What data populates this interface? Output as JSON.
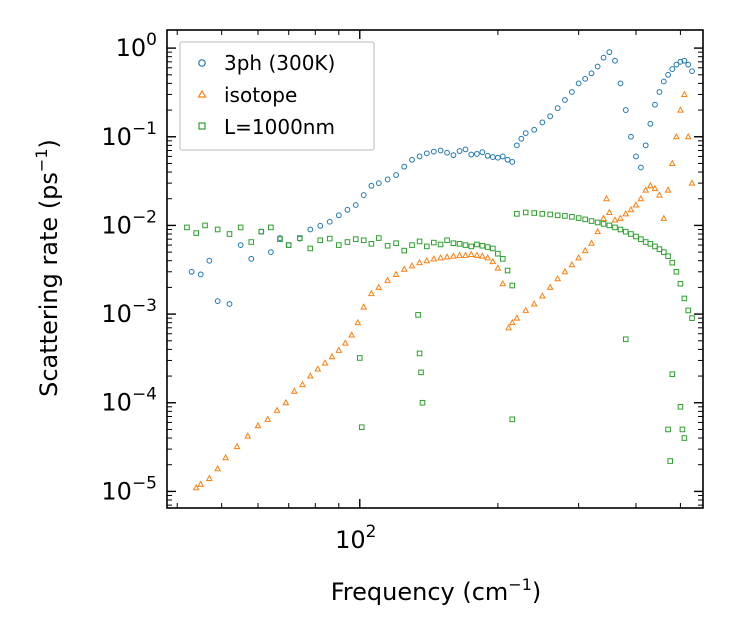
{
  "chart_data": {
    "type": "scatter",
    "title": "",
    "xlabel": "Frequency (cm",
    "xlabel_sup": "−1",
    "xlabel_close": ")",
    "ylabel": "Scattering rate (ps",
    "ylabel_sup": "−1",
    "ylabel_close": ")",
    "xscale": "log",
    "yscale": "log",
    "xlim": [
      38,
      560
    ],
    "ylim": [
      6.5e-06,
      1.6
    ],
    "grid": false,
    "legend_position": "top-left",
    "x_ticks": [
      {
        "base": "10",
        "exp": "2",
        "value": 100
      }
    ],
    "y_ticks": [
      {
        "base": "10",
        "exp": "0",
        "value": 1
      },
      {
        "base": "10",
        "exp": "−1",
        "value": 0.1
      },
      {
        "base": "10",
        "exp": "−2",
        "value": 0.01
      },
      {
        "base": "10",
        "exp": "−3",
        "value": 0.001
      },
      {
        "base": "10",
        "exp": "−4",
        "value": 0.0001
      },
      {
        "base": "10",
        "exp": "−5",
        "value": 1e-05
      }
    ],
    "series": [
      {
        "name": "3ph (300K)",
        "marker": "circle",
        "color": "#1f77b4",
        "x": [
          43,
          45,
          47,
          49,
          52,
          55,
          58,
          61,
          64,
          67,
          70,
          74,
          78,
          82,
          86,
          90,
          94,
          98,
          102,
          106,
          110,
          115,
          120,
          125,
          130,
          135,
          140,
          145,
          150,
          155,
          160,
          165,
          170,
          175,
          180,
          185,
          190,
          195,
          200,
          205,
          210,
          215,
          220,
          225,
          230,
          240,
          250,
          260,
          270,
          280,
          290,
          300,
          310,
          320,
          330,
          340,
          350,
          360,
          370,
          380,
          390,
          400,
          410,
          420,
          430,
          440,
          450,
          460,
          470,
          480,
          490,
          500,
          510,
          520,
          530
        ],
        "y": [
          0.003,
          0.0028,
          0.004,
          0.0014,
          0.0013,
          0.006,
          0.0042,
          0.0085,
          0.005,
          0.0072,
          0.006,
          0.0071,
          0.009,
          0.0099,
          0.011,
          0.013,
          0.015,
          0.017,
          0.022,
          0.028,
          0.03,
          0.033,
          0.037,
          0.046,
          0.055,
          0.06,
          0.065,
          0.068,
          0.07,
          0.066,
          0.062,
          0.069,
          0.072,
          0.063,
          0.064,
          0.067,
          0.061,
          0.059,
          0.058,
          0.06,
          0.055,
          0.052,
          0.08,
          0.095,
          0.11,
          0.12,
          0.145,
          0.17,
          0.21,
          0.26,
          0.32,
          0.4,
          0.45,
          0.52,
          0.62,
          0.78,
          0.9,
          0.72,
          0.4,
          0.2,
          0.1,
          0.06,
          0.045,
          0.08,
          0.14,
          0.23,
          0.32,
          0.42,
          0.5,
          0.58,
          0.65,
          0.7,
          0.72,
          0.65,
          0.55
        ]
      },
      {
        "name": "isotope",
        "marker": "triangle",
        "color": "#ff7f0e",
        "x": [
          44,
          45,
          47,
          49,
          51,
          54,
          57,
          60,
          63,
          66,
          69,
          72,
          75,
          78,
          81,
          84,
          87,
          90,
          93,
          96,
          99,
          102,
          106,
          110,
          115,
          120,
          125,
          130,
          135,
          140,
          145,
          150,
          155,
          160,
          165,
          170,
          175,
          180,
          185,
          190,
          195,
          200,
          205,
          211,
          215,
          220,
          230,
          240,
          250,
          260,
          270,
          280,
          290,
          300,
          310,
          320,
          330,
          340,
          345,
          350,
          360,
          370,
          380,
          390,
          400,
          410,
          420,
          430,
          440,
          450,
          460,
          470,
          480,
          490,
          500,
          510,
          520,
          530
        ],
        "y": [
          1.1e-05,
          1.2e-05,
          1.4e-05,
          1.8e-05,
          2.4e-05,
          3.2e-05,
          4.2e-05,
          5.5e-05,
          6.5e-05,
          8.2e-05,
          0.0001,
          0.000135,
          0.00016,
          0.0002,
          0.00024,
          0.00028,
          0.00033,
          0.00039,
          0.00047,
          0.00058,
          0.0008,
          0.0012,
          0.0017,
          0.002,
          0.0024,
          0.0028,
          0.0032,
          0.0035,
          0.0038,
          0.004,
          0.0042,
          0.0043,
          0.0044,
          0.0045,
          0.0046,
          0.0046,
          0.0047,
          0.0046,
          0.0045,
          0.0043,
          0.0039,
          0.0033,
          0.0022,
          0.0007,
          0.0008,
          0.0009,
          0.0011,
          0.0013,
          0.0016,
          0.002,
          0.0025,
          0.003,
          0.0036,
          0.0043,
          0.0052,
          0.0063,
          0.0085,
          0.012,
          0.02,
          0.014,
          0.0115,
          0.012,
          0.0135,
          0.015,
          0.017,
          0.02,
          0.025,
          0.028,
          0.026,
          0.022,
          0.012,
          0.025,
          0.05,
          0.1,
          0.2,
          0.3,
          0.1,
          0.03
        ]
      },
      {
        "name": "L=1000nm",
        "marker": "square",
        "color": "#2ca02c",
        "x": [
          42,
          44,
          46,
          49,
          52,
          55,
          58,
          61,
          64,
          67,
          70,
          74,
          78,
          82,
          86,
          90,
          94,
          98,
          102,
          106,
          110,
          115,
          120,
          125,
          130,
          135,
          140,
          145,
          150,
          155,
          160,
          165,
          170,
          175,
          180,
          185,
          190,
          195,
          200,
          205,
          210,
          215,
          220,
          230,
          240,
          250,
          260,
          270,
          280,
          290,
          300,
          310,
          320,
          330,
          340,
          350,
          360,
          370,
          380,
          390,
          400,
          410,
          420,
          430,
          440,
          450,
          460,
          470,
          480,
          490,
          500,
          510,
          520,
          530,
          100,
          101,
          134,
          135,
          136,
          137,
          215,
          380,
          470,
          475,
          480,
          500,
          505,
          510
        ],
        "y": [
          0.0095,
          0.0082,
          0.01,
          0.009,
          0.008,
          0.0095,
          0.0065,
          0.0085,
          0.0095,
          0.007,
          0.006,
          0.0072,
          0.0055,
          0.0068,
          0.0071,
          0.006,
          0.0065,
          0.007,
          0.0068,
          0.0062,
          0.0072,
          0.0059,
          0.0063,
          0.0052,
          0.006,
          0.0066,
          0.0058,
          0.0064,
          0.0061,
          0.0068,
          0.0063,
          0.0062,
          0.006,
          0.0058,
          0.0061,
          0.0059,
          0.0057,
          0.0055,
          0.0048,
          0.0042,
          0.0031,
          0.0021,
          0.0135,
          0.014,
          0.0138,
          0.0135,
          0.0133,
          0.013,
          0.0128,
          0.0125,
          0.0121,
          0.0117,
          0.0112,
          0.0108,
          0.0104,
          0.01,
          0.0095,
          0.009,
          0.0085,
          0.008,
          0.0075,
          0.007,
          0.0065,
          0.0062,
          0.0058,
          0.0054,
          0.005,
          0.0045,
          0.0038,
          0.003,
          0.0022,
          0.0015,
          0.0011,
          0.0009,
          0.00032,
          5.3e-05,
          0.00098,
          0.00036,
          0.00022,
          0.0001,
          6.5e-05,
          0.00052,
          5e-05,
          2.2e-05,
          0.00021,
          9e-05,
          5e-05,
          4e-05
        ]
      }
    ]
  }
}
